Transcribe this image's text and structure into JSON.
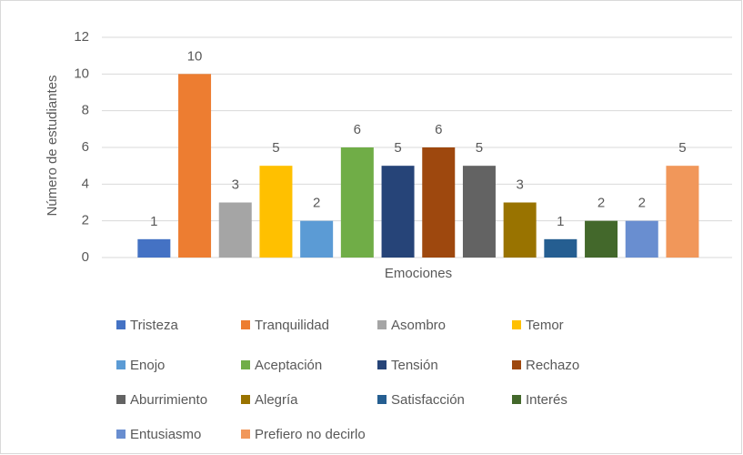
{
  "chart_data": {
    "type": "bar",
    "x_label": "Emociones",
    "y_label": "Número de estudiantes",
    "categories": [
      "Tristeza",
      "Tranquilidad",
      "Asombro",
      "Temor",
      "Enojo",
      "Aceptación",
      "Tensión",
      "Rechazo",
      "Aburrimiento",
      "Alegría",
      "Satisfacción",
      "Interés",
      "Entusiasmo",
      "Prefiero no decirlo"
    ],
    "values": [
      1,
      10,
      3,
      5,
      2,
      6,
      5,
      6,
      5,
      3,
      1,
      2,
      2,
      5
    ],
    "colors": [
      "#4472c4",
      "#ed7d31",
      "#a5a5a5",
      "#ffc000",
      "#5b9bd5",
      "#70ad47",
      "#264478",
      "#9e480e",
      "#636363",
      "#997300",
      "#255e91",
      "#43682b",
      "#698ed0",
      "#f1975a"
    ],
    "ylim": [
      0,
      12
    ],
    "yticks": [
      0,
      2,
      4,
      6,
      8,
      10,
      12
    ],
    "grid": true,
    "legend": "bottom"
  }
}
